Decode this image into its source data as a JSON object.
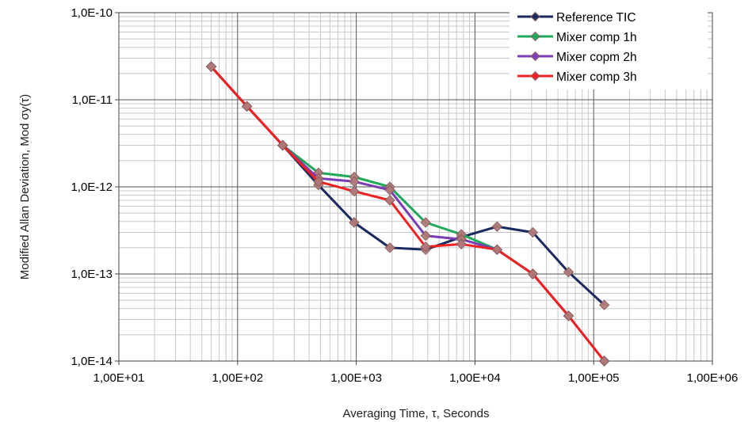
{
  "chart_data": {
    "type": "line",
    "xscale": "log",
    "yscale": "log",
    "xlim": [
      10,
      1000000
    ],
    "ylim": [
      1e-14,
      1e-10
    ],
    "xlabel": "Averaging Time, τ, Seconds",
    "ylabel": "Modified Allan Deviation, Mod σy(τ)",
    "x_ticks": [
      {
        "value": 10,
        "label": "1,00E+01"
      },
      {
        "value": 100,
        "label": "1,00E+02"
      },
      {
        "value": 1000,
        "label": "1,00E+03"
      },
      {
        "value": 10000,
        "label": "1,00E+04"
      },
      {
        "value": 100000,
        "label": "1,00E+05"
      },
      {
        "value": 1000000,
        "label": "1,00E+06"
      }
    ],
    "y_ticks": [
      {
        "value": 1e-14,
        "label": "1,0E-14"
      },
      {
        "value": 1e-13,
        "label": "1,0E-13"
      },
      {
        "value": 1e-12,
        "label": "1,0E-12"
      },
      {
        "value": 1e-11,
        "label": "1,0E-11"
      },
      {
        "value": 1e-10,
        "label": "1,0E-10"
      }
    ],
    "grid": true,
    "legend_position": "top-right",
    "series": [
      {
        "name": "Reference TIC",
        "color": "#1a2a5e",
        "x": [
          60,
          120,
          240,
          480,
          960,
          1920,
          3840,
          7680,
          15360,
          30720,
          61440,
          122880
        ],
        "y": [
          2.4e-11,
          8.4e-12,
          3e-12,
          1.05e-12,
          3.9e-13,
          2e-13,
          1.9e-13,
          2.65e-13,
          3.5e-13,
          3e-13,
          1.05e-13,
          4.4e-14
        ]
      },
      {
        "name": "Mixer comp 1h",
        "color": "#1ea85a",
        "x": [
          60,
          120,
          240,
          480,
          960,
          1920,
          3840,
          7680,
          15360,
          30720,
          61440,
          122880
        ],
        "y": [
          2.4e-11,
          8.4e-12,
          3e-12,
          1.45e-12,
          1.3e-12,
          1e-12,
          3.9e-13,
          2.85e-13,
          1.9e-13,
          1e-13,
          3.3e-14,
          1e-14
        ]
      },
      {
        "name": "Mixer copm 2h",
        "color": "#7b3db5",
        "x": [
          60,
          120,
          240,
          480,
          960,
          1920,
          3840,
          7680,
          15360,
          30720,
          61440,
          122880
        ],
        "y": [
          2.4e-11,
          8.4e-12,
          3e-12,
          1.25e-12,
          1.15e-12,
          9.2e-13,
          2.75e-13,
          2.5e-13,
          1.9e-13,
          1e-13,
          3.3e-14,
          1e-14
        ]
      },
      {
        "name": "Mixer comp 3h",
        "color": "#ee2222",
        "x": [
          60,
          120,
          240,
          480,
          960,
          1920,
          3840,
          7680,
          15360,
          30720,
          61440,
          122880
        ],
        "y": [
          2.4e-11,
          8.4e-12,
          3e-12,
          1.15e-12,
          8.9e-13,
          7e-13,
          2.05e-13,
          2.2e-13,
          1.9e-13,
          1e-13,
          3.3e-14,
          1e-14
        ]
      }
    ]
  }
}
